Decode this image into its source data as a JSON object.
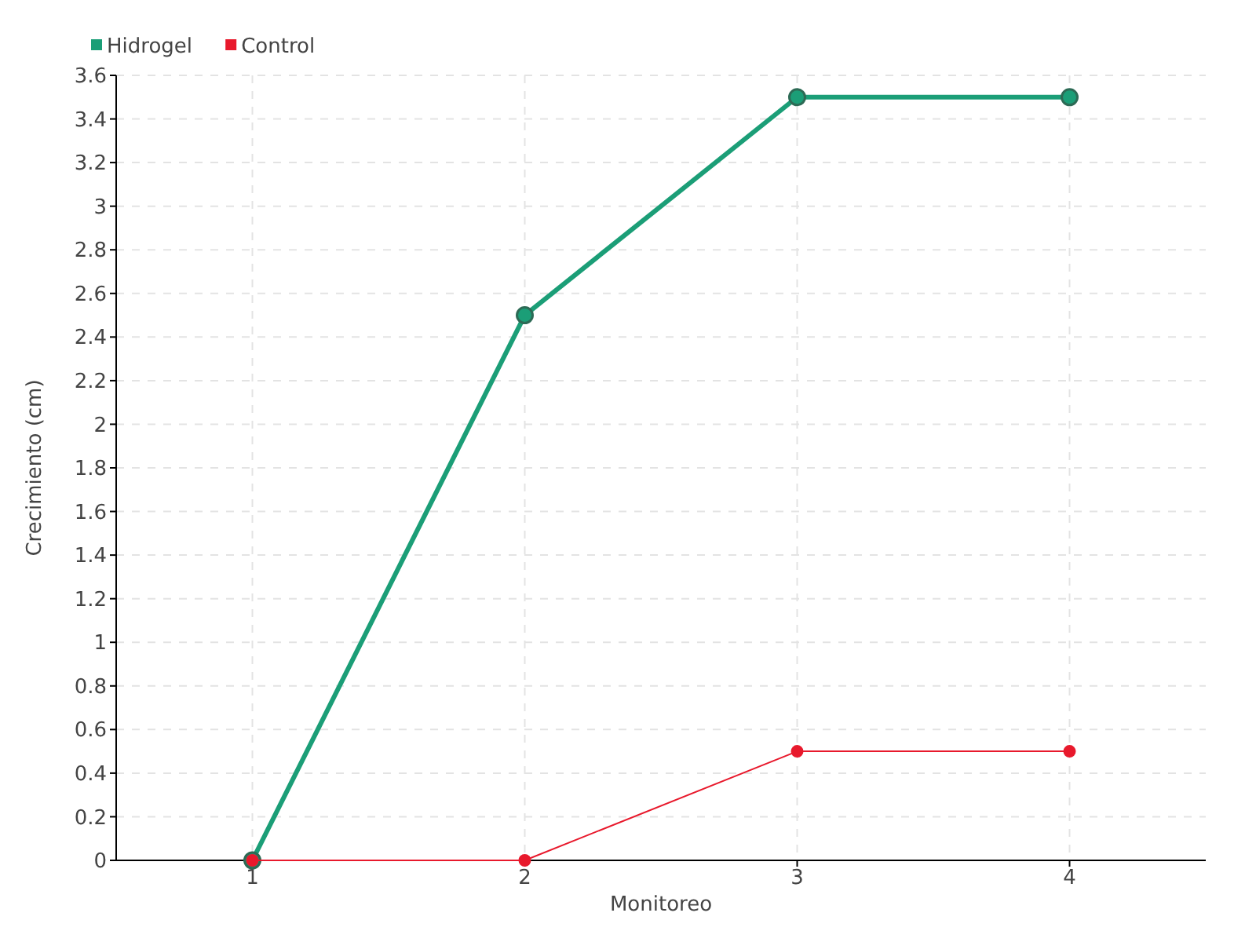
{
  "chart_data": {
    "type": "line",
    "xlabel": "Monitoreo",
    "ylabel": "Crecimiento (cm)",
    "x": [
      1,
      2,
      3,
      4
    ],
    "xlim": [
      0.5,
      4.5
    ],
    "xticks": [
      1,
      2,
      3,
      4
    ],
    "ylim": [
      0,
      3.6
    ],
    "yticks": [
      0,
      0.2,
      0.4,
      0.6,
      0.8,
      1,
      1.2,
      1.4,
      1.6,
      1.8,
      2,
      2.2,
      2.4,
      2.6,
      2.8,
      3,
      3.2,
      3.4,
      3.6
    ],
    "series": [
      {
        "name": "Hidrogel",
        "color": "#1b9e77",
        "values": [
          0,
          2.5,
          3.5,
          3.5
        ]
      },
      {
        "name": "Control",
        "color": "#e8192c",
        "values": [
          0,
          0,
          0.5,
          0.5
        ]
      }
    ],
    "grid": true,
    "legend": "top left",
    "marker": "circle"
  }
}
